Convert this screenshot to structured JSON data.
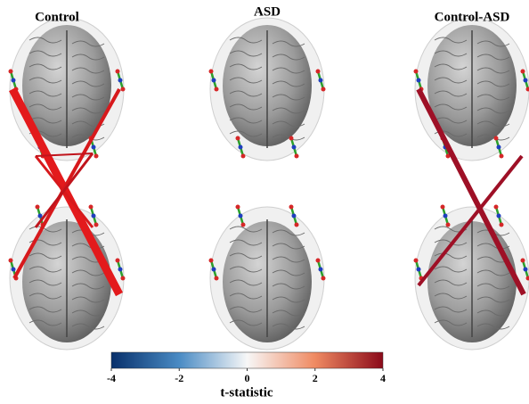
{
  "panels": [
    {
      "title": "Control"
    },
    {
      "title": "ASD"
    },
    {
      "title": "Control-ASD"
    }
  ],
  "colorbar": {
    "label": "t-statistic",
    "lim": [
      -4,
      4
    ],
    "ticks": [
      -4,
      -2,
      0,
      2,
      4
    ]
  }
}
